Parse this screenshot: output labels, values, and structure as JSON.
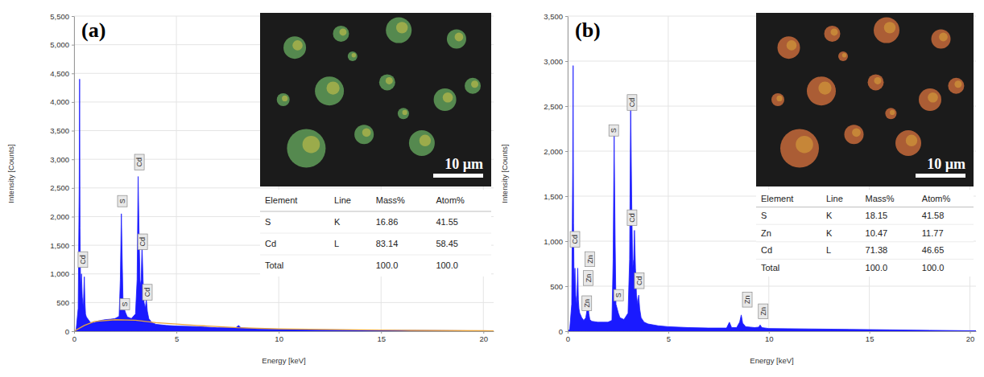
{
  "chart_data": [
    {
      "type": "area",
      "title": "(a)",
      "x_label": "Energy [keV]",
      "y_label": "Intensity [Counts]",
      "xlim": [
        0,
        20.5
      ],
      "xticks": [
        0,
        5,
        10,
        15,
        20
      ],
      "ylim": [
        0,
        5500
      ],
      "yticks": [
        0,
        500,
        {
          "value": 1000,
          "label": "1,000"
        },
        {
          "value": 1500,
          "label": "1,500"
        },
        {
          "value": 2000,
          "label": "2,000"
        },
        {
          "value": 2500,
          "label": "2,500"
        },
        {
          "value": 3000,
          "label": "3,000"
        },
        {
          "value": 3500,
          "label": "3,500"
        },
        {
          "value": 4000,
          "label": "4,000"
        },
        {
          "value": 4500,
          "label": "4,500"
        },
        {
          "value": 5000,
          "label": "5,000"
        },
        {
          "value": 5500,
          "label": "5,500"
        }
      ],
      "grid": true,
      "series": [
        {
          "color": "#1a1aff",
          "x": [
            0,
            0.1,
            0.2,
            0.25,
            0.27,
            0.29,
            0.32,
            0.36,
            0.4,
            0.45,
            0.5,
            0.53,
            0.56,
            0.6,
            0.7,
            0.8,
            1.0,
            1.2,
            1.5,
            1.8,
            2.0,
            2.2,
            2.26,
            2.31,
            2.36,
            2.4,
            2.46,
            2.52,
            2.6,
            2.8,
            3.0,
            3.08,
            3.13,
            3.18,
            3.23,
            3.28,
            3.32,
            3.37,
            3.42,
            3.48,
            3.53,
            3.58,
            3.65,
            3.8,
            4.0,
            4.5,
            5,
            6,
            7,
            7.9,
            8.04,
            8.15,
            8.5,
            9,
            10,
            12,
            14,
            16,
            18,
            20,
            20.5
          ],
          "values": [
            0,
            20,
            400,
            2500,
            4400,
            1800,
            700,
            1000,
            600,
            400,
            950,
            500,
            300,
            250,
            200,
            150,
            150,
            180,
            200,
            210,
            220,
            260,
            900,
            2050,
            1100,
            400,
            380,
            320,
            250,
            220,
            300,
            900,
            2700,
            1600,
            800,
            900,
            1500,
            900,
            500,
            400,
            550,
            350,
            220,
            150,
            120,
            100,
            90,
            80,
            60,
            60,
            100,
            60,
            50,
            40,
            35,
            25,
            20,
            15,
            10,
            5,
            5
          ]
        },
        {
          "type": "line",
          "color": "#e8a33c",
          "x": [
            0,
            0.5,
            1,
            2,
            3,
            4,
            6,
            8,
            10,
            13,
            16,
            20,
            20.5
          ],
          "values": [
            0,
            100,
            170,
            200,
            190,
            150,
            100,
            60,
            40,
            25,
            15,
            8,
            5
          ]
        }
      ],
      "annotations": [
        {
          "text": "Cd",
          "x": 0.43,
          "y": 1250
        },
        {
          "text": "S",
          "x": 2.36,
          "y": 2270
        },
        {
          "text": "Cd",
          "x": 3.19,
          "y": 2950
        },
        {
          "text": "Cd",
          "x": 3.35,
          "y": 1560
        },
        {
          "text": "S",
          "x": 2.48,
          "y": 470
        },
        {
          "text": "Cd",
          "x": 3.58,
          "y": 680
        }
      ],
      "scale_bar": "10 µm",
      "table": {
        "columns": [
          "Element",
          "Line",
          "Mass%",
          "Atom%"
        ],
        "rows": [
          [
            "S",
            "K",
            "16.86",
            "41.55"
          ],
          [
            "Cd",
            "L",
            "83.14",
            "58.45"
          ],
          [
            "Total",
            null,
            "100.0",
            "100.0"
          ]
        ]
      }
    },
    {
      "type": "area",
      "title": "(b)",
      "x_label": "Energy [keV]",
      "y_label": "Intensity [Counts]",
      "xlim": [
        0,
        20.3
      ],
      "xticks": [
        0,
        5,
        10,
        15,
        20
      ],
      "ylim": [
        0,
        3500
      ],
      "yticks": [
        0,
        500,
        {
          "value": 1000,
          "label": "1,000"
        },
        {
          "value": 1500,
          "label": "1,500"
        },
        {
          "value": 2000,
          "label": "2,000"
        },
        {
          "value": 2500,
          "label": "2,500"
        },
        {
          "value": 3000,
          "label": "3,000"
        },
        {
          "value": 3500,
          "label": "3,500"
        }
      ],
      "grid": true,
      "series": [
        {
          "color": "#1a1aff",
          "x": [
            0,
            0.1,
            0.2,
            0.25,
            0.27,
            0.29,
            0.32,
            0.36,
            0.4,
            0.45,
            0.5,
            0.53,
            0.56,
            0.6,
            0.7,
            0.8,
            0.9,
            0.97,
            1.01,
            1.05,
            1.1,
            1.2,
            1.5,
            1.8,
            2.0,
            2.2,
            2.26,
            2.31,
            2.36,
            2.4,
            2.46,
            2.52,
            2.6,
            2.8,
            3.0,
            3.08,
            3.13,
            3.18,
            3.23,
            3.28,
            3.32,
            3.37,
            3.42,
            3.48,
            3.53,
            3.58,
            3.65,
            3.8,
            4.0,
            4.5,
            5,
            6,
            7,
            7.9,
            8.04,
            8.15,
            8.4,
            8.55,
            8.63,
            8.7,
            8.85,
            9.3,
            9.5,
            9.57,
            9.65,
            10,
            12,
            14,
            16,
            18,
            20,
            20.3
          ],
          "values": [
            0,
            20,
            300,
            1800,
            2950,
            1200,
            500,
            700,
            400,
            300,
            700,
            350,
            250,
            200,
            150,
            120,
            150,
            250,
            350,
            200,
            130,
            110,
            100,
            100,
            100,
            120,
            800,
            2170,
            1000,
            300,
            250,
            200,
            150,
            130,
            200,
            800,
            2520,
            1500,
            700,
            800,
            1120,
            700,
            400,
            300,
            400,
            250,
            150,
            100,
            80,
            60,
            50,
            40,
            35,
            35,
            100,
            40,
            40,
            100,
            180,
            90,
            50,
            40,
            45,
            70,
            40,
            30,
            25,
            20,
            15,
            10,
            5,
            5
          ]
        }
      ],
      "annotations": [
        {
          "text": "Cd",
          "x": 0.36,
          "y": 1020
        },
        {
          "text": "Zn",
          "x": 1.1,
          "y": 800
        },
        {
          "text": "Zn",
          "x": 1.02,
          "y": 590
        },
        {
          "text": "Zn",
          "x": 0.95,
          "y": 310
        },
        {
          "text": "S",
          "x": 2.29,
          "y": 2230
        },
        {
          "text": "S",
          "x": 2.53,
          "y": 400
        },
        {
          "text": "Cd",
          "x": 3.2,
          "y": 2540
        },
        {
          "text": "Cd",
          "x": 3.2,
          "y": 1260
        },
        {
          "text": "Cd",
          "x": 3.56,
          "y": 560
        },
        {
          "text": "Zn",
          "x": 8.93,
          "y": 350
        },
        {
          "text": "Zn",
          "x": 9.72,
          "y": 220
        }
      ],
      "scale_bar": "10 µm",
      "table": {
        "columns": [
          "Element",
          "Line",
          "Mass%",
          "Atom%"
        ],
        "rows": [
          [
            "S",
            "K",
            "18.15",
            "41.58"
          ],
          [
            "Zn",
            "K",
            "10.47",
            "11.77"
          ],
          [
            "Cd",
            "L",
            "71.38",
            "46.65"
          ],
          [
            "Total",
            null,
            "100.0",
            "100.0"
          ]
        ]
      }
    }
  ]
}
